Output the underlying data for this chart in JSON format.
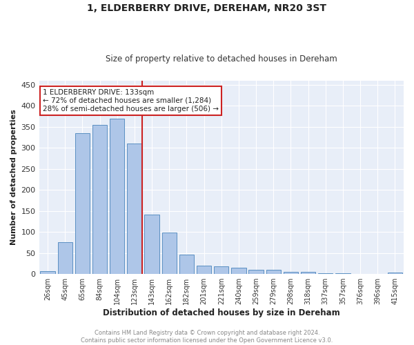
{
  "title1": "1, ELDERBERRY DRIVE, DEREHAM, NR20 3ST",
  "title2": "Size of property relative to detached houses in Dereham",
  "xlabel": "Distribution of detached houses by size in Dereham",
  "ylabel": "Number of detached properties",
  "categories": [
    "26sqm",
    "45sqm",
    "65sqm",
    "84sqm",
    "104sqm",
    "123sqm",
    "143sqm",
    "162sqm",
    "182sqm",
    "201sqm",
    "221sqm",
    "240sqm",
    "259sqm",
    "279sqm",
    "298sqm",
    "318sqm",
    "337sqm",
    "357sqm",
    "376sqm",
    "396sqm",
    "415sqm"
  ],
  "values": [
    7,
    75,
    335,
    355,
    370,
    310,
    142,
    98,
    46,
    20,
    18,
    15,
    11,
    10,
    5,
    5,
    2,
    2,
    1,
    0,
    3
  ],
  "bar_color": "#aec6e8",
  "bar_edge_color": "#5a8fc2",
  "background_color": "#e8eef8",
  "vline_x_idx": 5,
  "vline_color": "#cc2222",
  "annotation_line1": "1 ELDERBERRY DRIVE: 133sqm",
  "annotation_line2": "← 72% of detached houses are smaller (1,284)",
  "annotation_line3": "28% of semi-detached houses are larger (506) →",
  "annotation_box_color": "#cc2222",
  "footer1": "Contains HM Land Registry data © Crown copyright and database right 2024.",
  "footer2": "Contains public sector information licensed under the Open Government Licence v3.0.",
  "ylim": [
    0,
    460
  ],
  "yticks": [
    0,
    50,
    100,
    150,
    200,
    250,
    300,
    350,
    400,
    450
  ]
}
